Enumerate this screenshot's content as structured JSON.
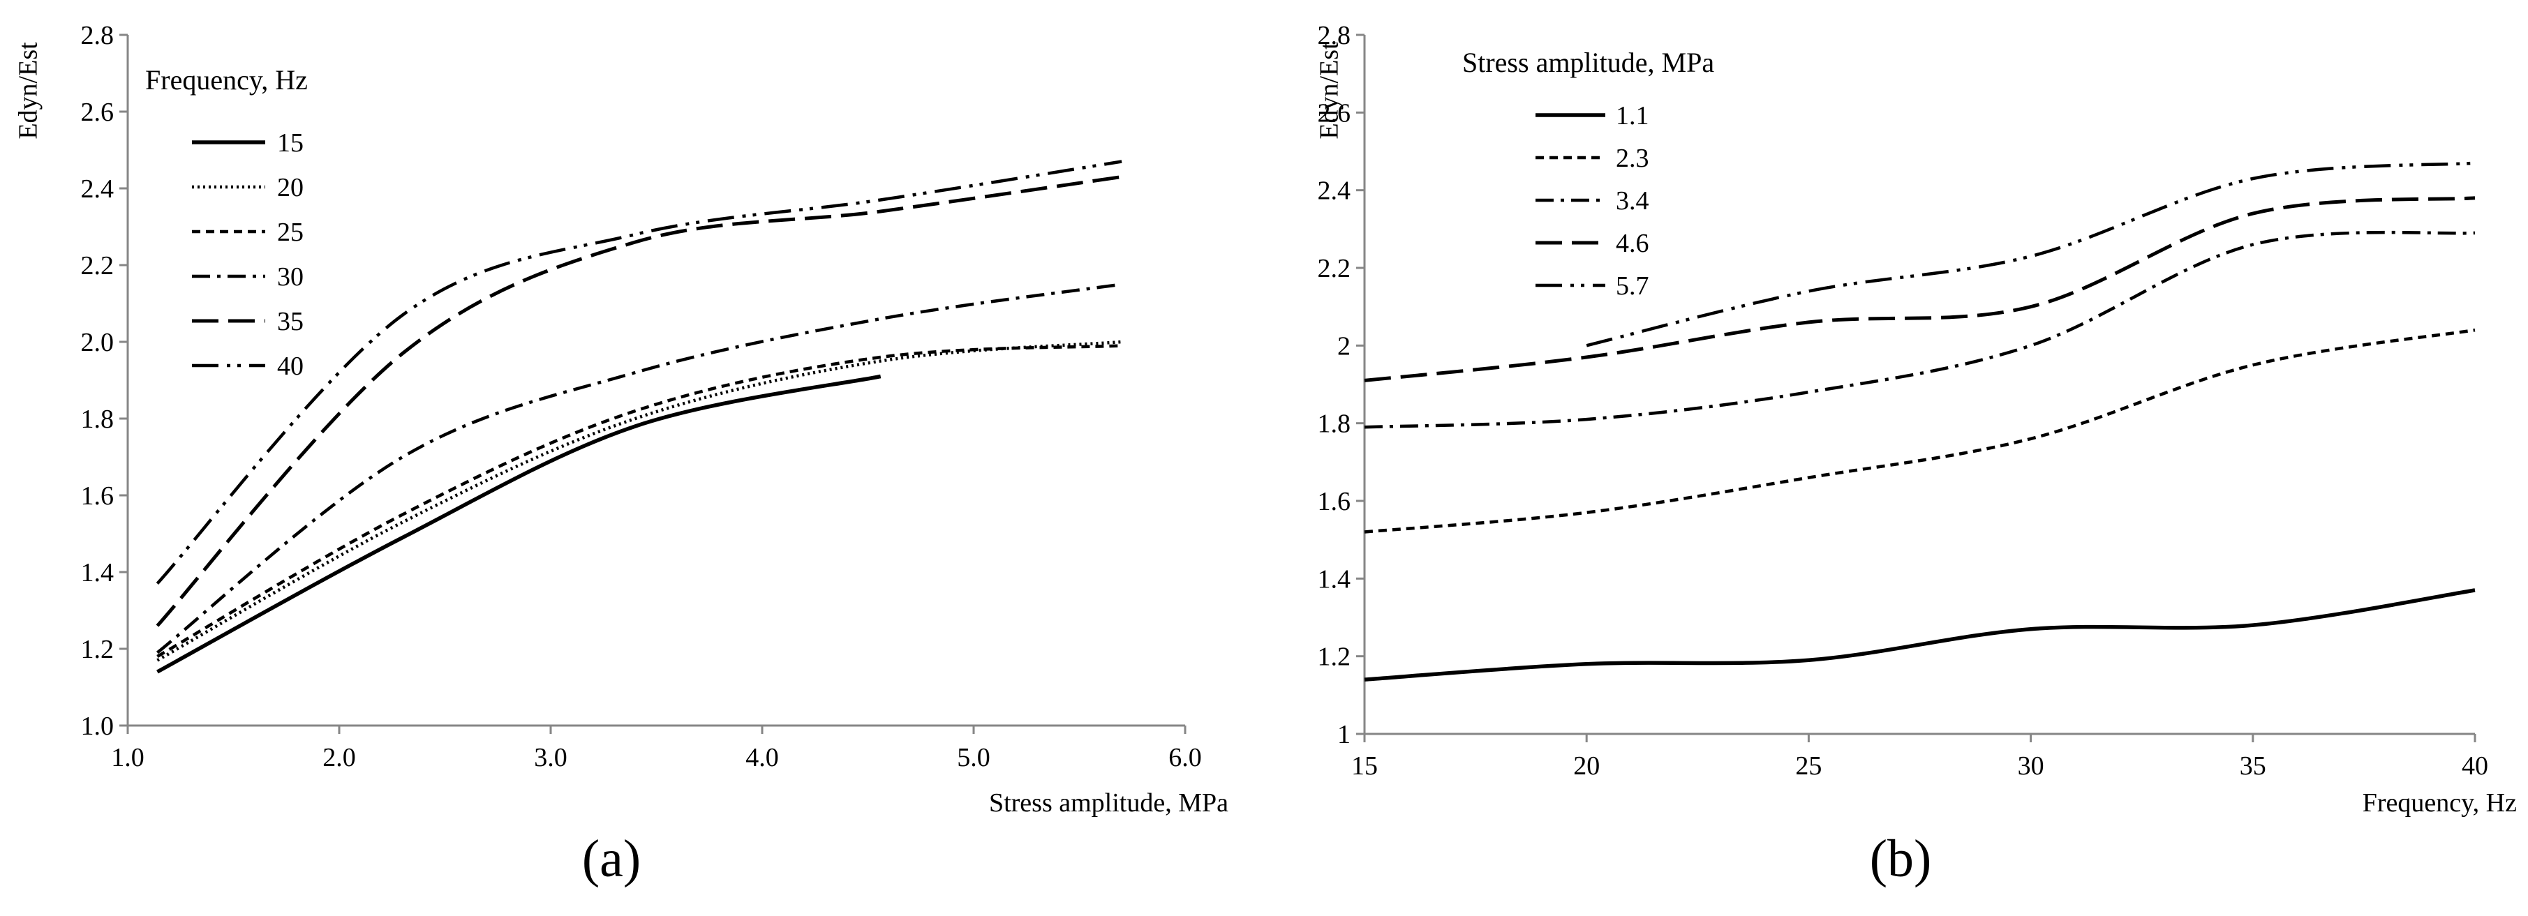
{
  "chart_data": [
    {
      "type": "line",
      "panel_label": "(a)",
      "xlabel": "Stress amplitude, MPa",
      "ylabel": "Edyn/Est",
      "xlim": [
        1.0,
        6.0
      ],
      "ylim": [
        1.0,
        2.8
      ],
      "x_ticks": [
        "1.0",
        "2.0",
        "3.0",
        "4.0",
        "5.0",
        "6.0"
      ],
      "y_ticks": [
        "1.0",
        "1.2",
        "1.4",
        "1.6",
        "1.8",
        "2.0",
        "2.2",
        "2.4",
        "2.6",
        "2.8"
      ],
      "grid": false,
      "legend_title": "Frequency, Hz",
      "legend_position": "top-left",
      "series": [
        {
          "name": "15",
          "style": "solid",
          "x": [
            1.14,
            2.3,
            3.4,
            4.56
          ],
          "values": [
            1.14,
            1.49,
            1.78,
            1.91
          ]
        },
        {
          "name": "20",
          "style": "dotted",
          "x": [
            1.14,
            2.3,
            3.4,
            4.56,
            5.7
          ],
          "values": [
            1.17,
            1.53,
            1.8,
            1.95,
            2.0
          ]
        },
        {
          "name": "25",
          "style": "dashed",
          "x": [
            1.14,
            2.3,
            3.4,
            4.56,
            5.7
          ],
          "values": [
            1.18,
            1.55,
            1.82,
            1.96,
            1.99
          ]
        },
        {
          "name": "30",
          "style": "dash-dot",
          "x": [
            1.14,
            2.3,
            3.4,
            4.56,
            5.7
          ],
          "values": [
            1.19,
            1.7,
            1.92,
            2.06,
            2.15
          ]
        },
        {
          "name": "35",
          "style": "long-dash",
          "x": [
            1.14,
            2.3,
            3.4,
            4.56,
            5.7
          ],
          "values": [
            1.26,
            1.97,
            2.26,
            2.34,
            2.43
          ]
        },
        {
          "name": "40",
          "style": "long-dash-dot-dot",
          "x": [
            1.14,
            2.3,
            3.4,
            4.56,
            5.7
          ],
          "values": [
            1.37,
            2.07,
            2.28,
            2.37,
            2.47
          ]
        }
      ]
    },
    {
      "type": "line",
      "panel_label": "(b)",
      "xlabel": "Frequency, Hz",
      "ylabel": "Edyn/Est",
      "xlim": [
        15,
        40
      ],
      "ylim": [
        1.0,
        2.8
      ],
      "x_ticks": [
        "15",
        "20",
        "25",
        "30",
        "35",
        "40"
      ],
      "y_ticks": [
        "1",
        "1.2",
        "1.4",
        "1.6",
        "1.8",
        "2",
        "2.2",
        "2.4",
        "2.6",
        "2.8"
      ],
      "grid": false,
      "legend_title": "Stress amplitude, MPa",
      "legend_position": "top-left",
      "series": [
        {
          "name": "1.1",
          "style": "solid",
          "x": [
            15,
            20,
            25,
            30,
            35,
            40
          ],
          "values": [
            1.14,
            1.18,
            1.19,
            1.27,
            1.28,
            1.37
          ]
        },
        {
          "name": "2.3",
          "style": "dashed",
          "x": [
            15,
            20,
            25,
            30,
            35,
            40
          ],
          "values": [
            1.52,
            1.57,
            1.66,
            1.76,
            1.95,
            2.04
          ]
        },
        {
          "name": "3.4",
          "style": "dash-dot",
          "x": [
            15,
            20,
            25,
            30,
            35,
            40
          ],
          "values": [
            1.79,
            1.81,
            1.88,
            2.0,
            2.26,
            2.29
          ]
        },
        {
          "name": "4.6",
          "style": "long-dash",
          "x": [
            15,
            20,
            25,
            30,
            35,
            40
          ],
          "values": [
            1.91,
            1.97,
            2.06,
            2.1,
            2.34,
            2.38
          ]
        },
        {
          "name": "5.7",
          "style": "long-dash-dot-dot",
          "x": [
            20,
            25,
            30,
            35,
            40
          ],
          "values": [
            2.0,
            2.14,
            2.23,
            2.43,
            2.47
          ]
        }
      ]
    }
  ]
}
